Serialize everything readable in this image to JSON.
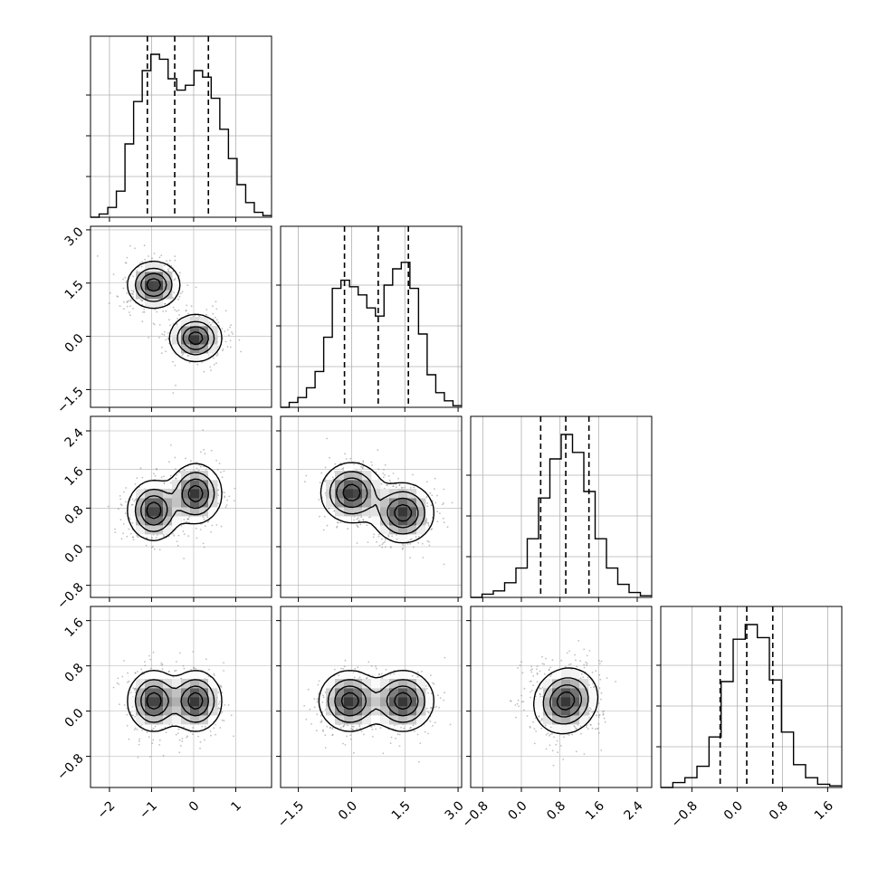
{
  "chart_data": {
    "type": "corner",
    "title": "",
    "grid": true,
    "colors": {
      "ink": "#000000",
      "grid": "#b0b0b0",
      "scatter": "#808080"
    },
    "parameters": [
      {
        "range": [
          -2.45,
          1.85
        ],
        "ticks": [
          -2,
          -1,
          0,
          1
        ],
        "tick_labels": [
          "−2",
          "−1",
          "0",
          "1"
        ],
        "quantile_lines": [
          -1.1,
          -0.45,
          0.35
        ],
        "hist_counts": [
          0,
          0.02,
          0.06,
          0.16,
          0.45,
          0.71,
          0.9,
          1.0,
          0.97,
          0.85,
          0.78,
          0.81,
          0.9,
          0.86,
          0.73,
          0.54,
          0.36,
          0.2,
          0.09,
          0.03,
          0.01
        ]
      },
      {
        "range": [
          -2.0,
          3.1
        ],
        "ticks": [
          -1.5,
          0.0,
          1.5,
          3.0
        ],
        "tick_labels": [
          "−1.5",
          "0.0",
          "1.5",
          "3.0"
        ],
        "quantile_lines": [
          -0.2,
          0.75,
          1.6
        ],
        "hist_counts": [
          0,
          0.03,
          0.06,
          0.12,
          0.22,
          0.43,
          0.73,
          0.78,
          0.74,
          0.69,
          0.61,
          0.56,
          0.75,
          0.85,
          0.89,
          0.73,
          0.45,
          0.2,
          0.09,
          0.04,
          0.01
        ]
      },
      {
        "range": [
          -1.05,
          2.7
        ],
        "ticks": [
          -0.8,
          0.0,
          0.8,
          1.6,
          2.4
        ],
        "tick_labels": [
          "−0.8",
          "0.0",
          "0.8",
          "1.6",
          "2.4"
        ],
        "quantile_lines": [
          0.4,
          0.92,
          1.4
        ],
        "hist_counts": [
          0,
          0.02,
          0.04,
          0.09,
          0.18,
          0.36,
          0.61,
          0.85,
          1.0,
          0.89,
          0.65,
          0.36,
          0.18,
          0.08,
          0.03,
          0.01
        ]
      },
      {
        "range": [
          -1.35,
          1.85
        ],
        "ticks": [
          -0.8,
          0.0,
          0.8,
          1.6
        ],
        "tick_labels": [
          "−0.8",
          "0.0",
          "0.8",
          "1.6"
        ],
        "quantile_lines": [
          -0.3,
          0.17,
          0.63
        ],
        "hist_counts": [
          0,
          0.03,
          0.06,
          0.13,
          0.31,
          0.65,
          0.91,
          1.0,
          0.92,
          0.66,
          0.34,
          0.14,
          0.06,
          0.02,
          0.01
        ]
      }
    ],
    "modes": {
      "0": [
        [
          -0.95,
          1.4,
          0.3
        ],
        [
          0.05,
          0.0,
          0.3
        ]
      ],
      "2": [
        [
          -0.95,
          0.75,
          0.25
        ],
        [
          0.05,
          1.1,
          0.25
        ]
      ],
      "3": [
        [
          -0.95,
          0.18,
          0.25
        ],
        [
          0.05,
          0.18,
          0.25
        ]
      ],
      "1": [
        [
          -0.3,
          0.75,
          0.35
        ],
        [
          -0.3,
          0.75,
          0.35
        ]
      ]
    },
    "pairs": [
      {
        "x": 0,
        "y": 1,
        "modes": [
          [
            -0.95,
            1.45,
            0.3,
            0.32,
            0.0
          ],
          [
            0.05,
            -0.05,
            0.3,
            0.32,
            0.0
          ]
        ]
      },
      {
        "x": 0,
        "y": 2,
        "modes": [
          [
            -0.95,
            0.75,
            0.3,
            0.3,
            0.0
          ],
          [
            0.05,
            1.1,
            0.3,
            0.3,
            0.0
          ]
        ]
      },
      {
        "x": 1,
        "y": 2,
        "modes": [
          [
            0.0,
            1.12,
            0.42,
            0.3,
            0.0
          ],
          [
            1.45,
            0.7,
            0.42,
            0.3,
            0.0
          ]
        ]
      },
      {
        "x": 0,
        "y": 3,
        "modes": [
          [
            -0.95,
            0.18,
            0.3,
            0.26,
            0.0
          ],
          [
            0.05,
            0.18,
            0.3,
            0.26,
            0.0
          ]
        ]
      },
      {
        "x": 1,
        "y": 3,
        "modes": [
          [
            -0.05,
            0.18,
            0.42,
            0.26,
            0.0
          ],
          [
            1.45,
            0.18,
            0.42,
            0.26,
            0.0
          ]
        ]
      },
      {
        "x": 2,
        "y": 3,
        "modes": [
          [
            0.92,
            0.18,
            0.32,
            0.28,
            0.1
          ]
        ]
      }
    ]
  }
}
